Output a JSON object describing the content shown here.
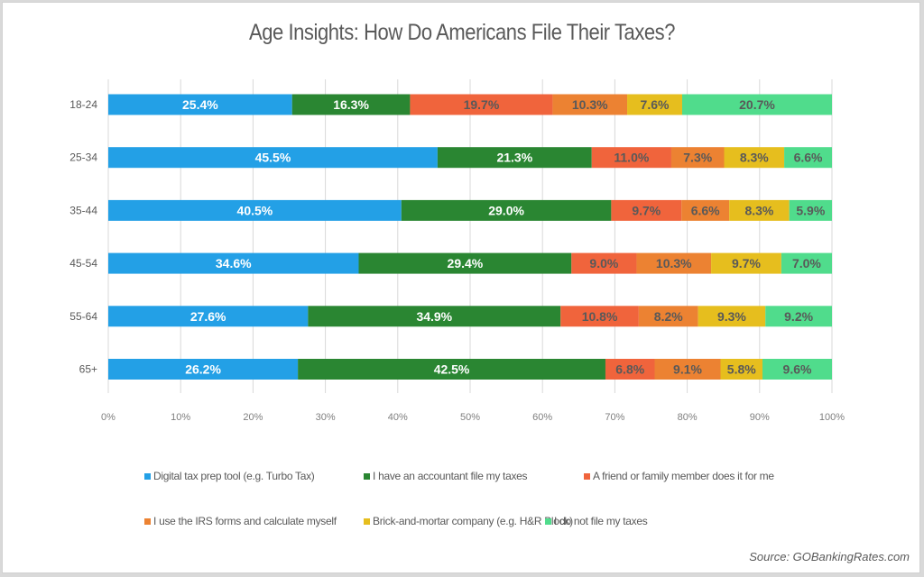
{
  "chart_data": {
    "type": "bar",
    "orientation": "horizontal",
    "stacked": true,
    "title": "Age Insights: How Do Americans File Their Taxes?",
    "categories": [
      "18-24",
      "25-34",
      "35-44",
      "45-54",
      "55-64",
      "65+"
    ],
    "series": [
      {
        "name": "Digital tax prep tool (e.g. Turbo Tax)",
        "color": "#23a0e6",
        "label_color": "#ffffff",
        "values": [
          25.4,
          45.5,
          40.5,
          34.6,
          27.6,
          26.2
        ]
      },
      {
        "name": "I have an accountant file my taxes",
        "color": "#2a8632",
        "label_color": "#ffffff",
        "values": [
          16.3,
          21.3,
          29.0,
          29.4,
          34.9,
          42.5
        ]
      },
      {
        "name": "A friend or family member does it for me",
        "color": "#f0643c",
        "label_color": "#595959",
        "values": [
          19.7,
          11.0,
          9.7,
          9.0,
          10.8,
          6.8
        ]
      },
      {
        "name": "I use the IRS forms and calculate myself",
        "color": "#ec8232",
        "label_color": "#595959",
        "values": [
          10.3,
          7.3,
          6.6,
          10.3,
          8.2,
          9.1
        ]
      },
      {
        "name": "Brick-and-mortar company (e.g. H&R Block)",
        "color": "#e6be1e",
        "label_color": "#595959",
        "values": [
          7.6,
          8.3,
          8.3,
          9.7,
          9.3,
          5.8
        ]
      },
      {
        "name": "I do not file my taxes",
        "color": "#50dc8c",
        "label_color": "#595959",
        "values": [
          20.7,
          6.6,
          5.9,
          7.0,
          9.2,
          9.6
        ]
      }
    ],
    "xlabel": "",
    "ylabel": "",
    "xlim": [
      0,
      100
    ],
    "x_ticks": [
      "0%",
      "10%",
      "20%",
      "30%",
      "40%",
      "50%",
      "60%",
      "70%",
      "80%",
      "90%",
      "100%"
    ],
    "grid": true,
    "legend_position": "bottom",
    "source": "Source: GOBankingRates.com"
  }
}
